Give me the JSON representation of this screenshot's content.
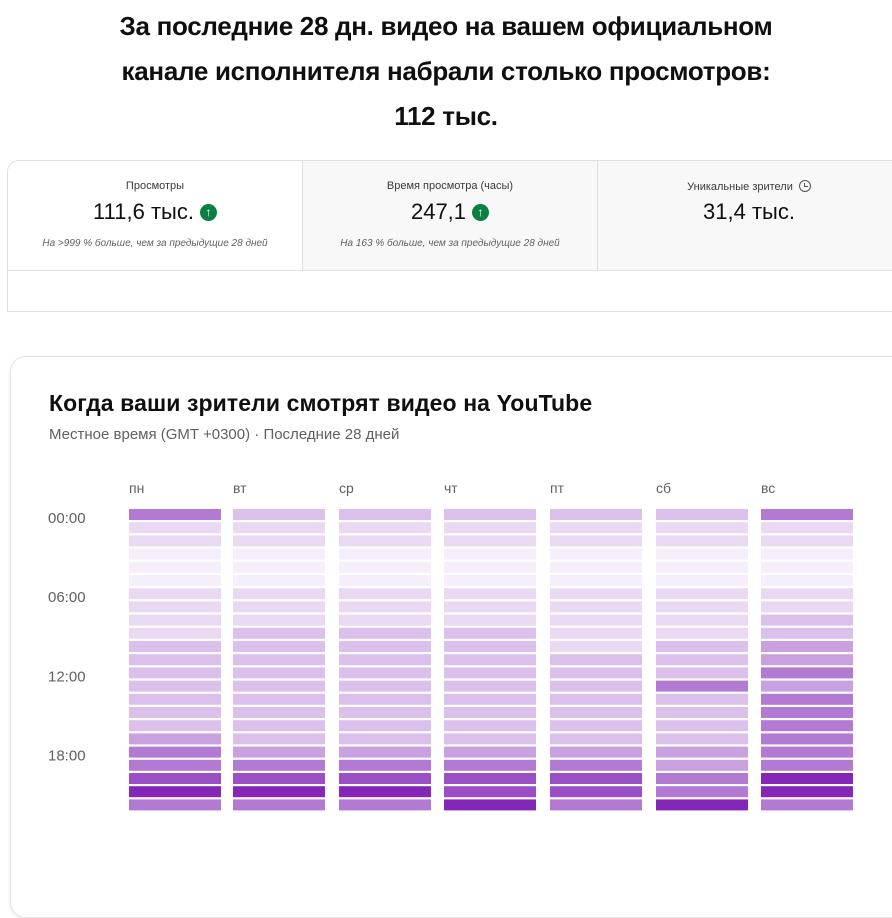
{
  "headline": {
    "line1": "За последние 28 дн. видео на вашем официальном",
    "line2": "канале исполнителя набрали столько просмотров:",
    "line3": "112 тыс."
  },
  "stats": [
    {
      "label": "Просмотры",
      "value": "111,6 тыс.",
      "trend": "up",
      "note": "На >999 % больше, чем за предыдущие 28 дней"
    },
    {
      "label": "Время просмотра (часы)",
      "value": "247,1",
      "trend": "up",
      "note": "На 163 % больше, чем за предыдущие 28 дней"
    },
    {
      "label": "Уникальные зрители",
      "value": "31,4 тыс.",
      "icon": "clock-icon"
    }
  ],
  "heatmap": {
    "title": "Когда ваши зрители смотрят видео на YouTube",
    "subtitle": "Местное время (GMT +0300) · Последние 28 дней",
    "days": [
      "пн",
      "вт",
      "ср",
      "чт",
      "пт",
      "сб",
      "вс"
    ],
    "hour_labels": [
      "00:00",
      "06:00",
      "12:00",
      "18:00"
    ],
    "color_scale": [
      "#f6eefa",
      "#ead9f3",
      "#dcc0ec",
      "#c9a0e0",
      "#b27ad3",
      "#9a4fc6",
      "#8427b8"
    ],
    "levels": [
      [
        4,
        2,
        2,
        2,
        2,
        2,
        4
      ],
      [
        1,
        1,
        1,
        1,
        1,
        1,
        1
      ],
      [
        1,
        1,
        1,
        1,
        1,
        1,
        1
      ],
      [
        0,
        0,
        0,
        0,
        0,
        0,
        0
      ],
      [
        0,
        0,
        0,
        0,
        0,
        0,
        0
      ],
      [
        0,
        0,
        0,
        0,
        0,
        0,
        0
      ],
      [
        1,
        1,
        1,
        1,
        1,
        1,
        1
      ],
      [
        1,
        1,
        1,
        1,
        1,
        1,
        1
      ],
      [
        1,
        1,
        1,
        1,
        1,
        1,
        2
      ],
      [
        1,
        2,
        2,
        2,
        1,
        1,
        2
      ],
      [
        2,
        2,
        2,
        2,
        1,
        2,
        3
      ],
      [
        2,
        2,
        2,
        2,
        2,
        2,
        3
      ],
      [
        2,
        2,
        2,
        2,
        2,
        2,
        4
      ],
      [
        2,
        2,
        2,
        2,
        2,
        4,
        3
      ],
      [
        2,
        2,
        2,
        2,
        2,
        2,
        4
      ],
      [
        2,
        2,
        2,
        2,
        2,
        2,
        4
      ],
      [
        2,
        2,
        2,
        2,
        2,
        2,
        4
      ],
      [
        3,
        2,
        2,
        2,
        2,
        2,
        4
      ],
      [
        4,
        3,
        3,
        3,
        3,
        3,
        4
      ],
      [
        4,
        4,
        4,
        4,
        4,
        3,
        4
      ],
      [
        5,
        5,
        5,
        5,
        5,
        4,
        6
      ],
      [
        6,
        6,
        6,
        5,
        5,
        4,
        6
      ],
      [
        4,
        4,
        4,
        6,
        4,
        6,
        4
      ]
    ]
  }
}
